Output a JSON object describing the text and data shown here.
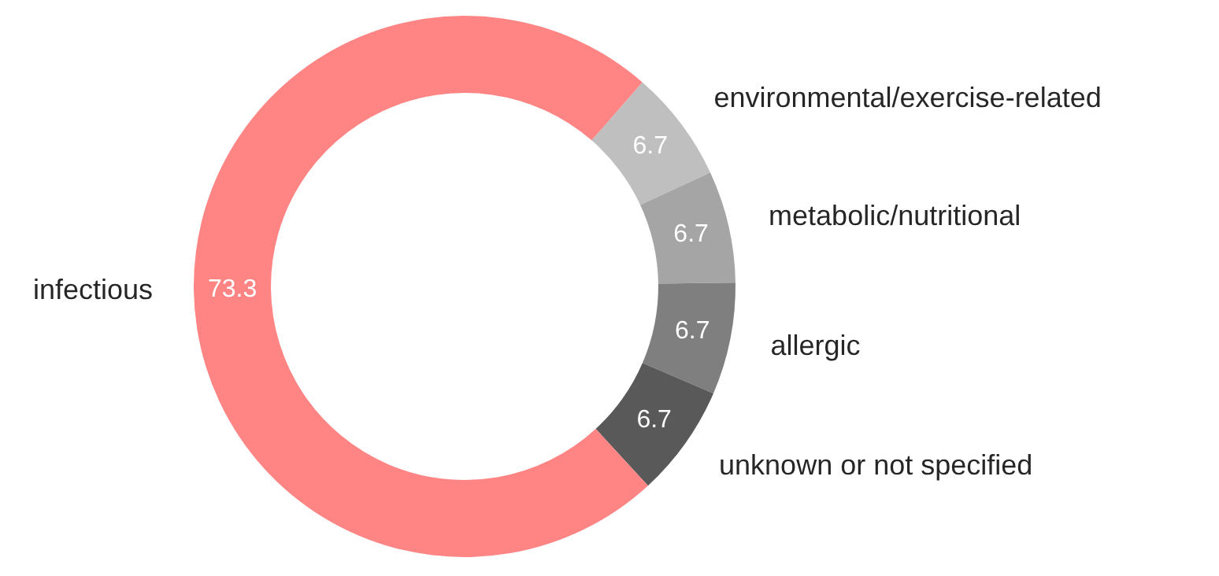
{
  "chart_data": {
    "type": "donut",
    "categories": [
      "environmental/exercise-related",
      "metabolic/nutritional",
      "allergic",
      "unknown or not specified",
      "infectious"
    ],
    "values": [
      6.7,
      6.7,
      6.7,
      6.7,
      73.3
    ],
    "colors": [
      "#bfbfbf",
      "#a5a5a5",
      "#7f7f7f",
      "#595959",
      "#ff8585"
    ],
    "data_labels": true,
    "legend": false
  }
}
